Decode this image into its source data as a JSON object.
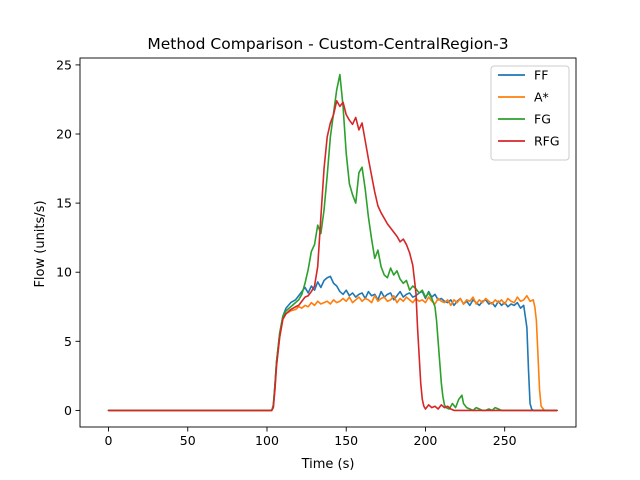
{
  "chart_data": {
    "type": "line",
    "title": "Method Comparison - Custom-CentralRegion-3",
    "xlabel": "Time (s)",
    "ylabel": "Flow (units/s)",
    "xlim": [
      -18,
      295
    ],
    "ylim": [
      -1.2,
      25.5
    ],
    "xticks": [
      0,
      50,
      100,
      150,
      200,
      250
    ],
    "yticks": [
      0,
      5,
      10,
      15,
      20,
      25
    ],
    "grid": false,
    "legend_position": "top-right",
    "series": [
      {
        "name": "FF",
        "color": "#1f77b4",
        "x": [
          0,
          50,
          100,
          103,
          104,
          105,
          106,
          108,
          110,
          112,
          115,
          118,
          120,
          122,
          124,
          126,
          128,
          130,
          132,
          134,
          136,
          138,
          140,
          142,
          144,
          146,
          148,
          150,
          152,
          154,
          156,
          158,
          160,
          162,
          164,
          166,
          168,
          170,
          172,
          174,
          176,
          178,
          180,
          182,
          184,
          186,
          188,
          190,
          192,
          194,
          196,
          198,
          200,
          202,
          204,
          206,
          208,
          210,
          212,
          214,
          216,
          218,
          220,
          222,
          224,
          226,
          228,
          230,
          232,
          234,
          236,
          238,
          240,
          242,
          244,
          246,
          248,
          250,
          252,
          254,
          256,
          258,
          260,
          262,
          264,
          265,
          266,
          267,
          268,
          270,
          275,
          283
        ],
        "y": [
          0,
          0,
          0,
          0,
          0.3,
          1.8,
          3.5,
          5.5,
          6.8,
          7.4,
          7.8,
          8.0,
          8.3,
          8.6,
          8.9,
          8.5,
          9.0,
          8.7,
          9.3,
          8.9,
          9.4,
          9.6,
          9.7,
          9.2,
          9.0,
          8.6,
          8.4,
          8.7,
          8.3,
          8.5,
          8.2,
          8.4,
          8.5,
          8.1,
          8.6,
          8.3,
          8.4,
          8.0,
          8.6,
          8.2,
          8.4,
          8.5,
          8.0,
          8.3,
          8.6,
          8.2,
          8.4,
          8.5,
          8.2,
          8.3,
          8.5,
          8.6,
          8.1,
          8.6,
          8.2,
          8.4,
          8.0,
          8.1,
          7.9,
          7.8,
          8.0,
          7.6,
          7.9,
          8.1,
          7.7,
          7.9,
          7.6,
          8.0,
          7.8,
          7.6,
          7.9,
          8.0,
          7.7,
          7.8,
          7.5,
          7.9,
          7.6,
          7.8,
          7.5,
          7.7,
          7.6,
          7.8,
          7.4,
          7.6,
          6.0,
          3.0,
          0.5,
          0.1,
          0,
          0,
          0,
          0
        ]
      },
      {
        "name": "A*",
        "color": "#ff7f0e",
        "x": [
          0,
          50,
          100,
          103,
          104,
          105,
          106,
          108,
          110,
          112,
          115,
          118,
          120,
          122,
          124,
          126,
          128,
          130,
          132,
          134,
          136,
          138,
          140,
          142,
          144,
          146,
          148,
          150,
          152,
          154,
          156,
          158,
          160,
          162,
          164,
          166,
          168,
          170,
          172,
          174,
          176,
          178,
          180,
          182,
          184,
          186,
          188,
          190,
          192,
          194,
          196,
          198,
          200,
          202,
          204,
          206,
          208,
          210,
          212,
          214,
          216,
          218,
          220,
          222,
          224,
          226,
          228,
          230,
          232,
          234,
          236,
          238,
          240,
          242,
          244,
          246,
          248,
          250,
          252,
          254,
          256,
          258,
          260,
          262,
          264,
          266,
          268,
          269,
          270,
          271,
          272,
          273,
          275,
          283
        ],
        "y": [
          0,
          0,
          0,
          0,
          0.3,
          1.5,
          3.3,
          5.3,
          6.6,
          7.0,
          7.2,
          7.3,
          7.5,
          7.4,
          7.6,
          7.5,
          7.8,
          7.6,
          7.9,
          7.7,
          7.8,
          7.9,
          7.7,
          8.0,
          7.8,
          7.9,
          8.1,
          7.9,
          8.2,
          7.8,
          8.0,
          8.2,
          7.9,
          8.1,
          8.0,
          7.8,
          8.3,
          7.9,
          8.1,
          8.2,
          7.9,
          8.0,
          8.3,
          7.8,
          8.1,
          7.9,
          8.2,
          8.0,
          7.8,
          8.1,
          7.9,
          8.0,
          7.8,
          8.2,
          7.9,
          7.7,
          8.1,
          7.9,
          7.8,
          8.0,
          7.6,
          8.0,
          7.8,
          8.1,
          7.7,
          8.0,
          7.9,
          8.2,
          7.7,
          8.0,
          7.8,
          8.1,
          7.9,
          7.7,
          8.0,
          7.8,
          8.0,
          7.7,
          8.1,
          7.9,
          7.8,
          8.2,
          7.9,
          8.0,
          8.3,
          7.9,
          8.0,
          7.5,
          6.5,
          4.0,
          1.5,
          0.3,
          0,
          0
        ]
      },
      {
        "name": "FG",
        "color": "#2ca02c",
        "x": [
          0,
          50,
          100,
          103,
          104,
          105,
          106,
          108,
          110,
          112,
          115,
          118,
          120,
          122,
          124,
          126,
          128,
          130,
          132,
          134,
          136,
          138,
          140,
          142,
          144,
          146,
          148,
          150,
          152,
          154,
          156,
          158,
          160,
          162,
          164,
          166,
          168,
          170,
          172,
          174,
          176,
          178,
          180,
          182,
          184,
          186,
          188,
          190,
          192,
          194,
          196,
          198,
          200,
          202,
          204,
          206,
          207,
          208,
          209,
          210,
          211,
          212,
          213,
          215,
          217,
          219,
          221,
          223,
          224,
          226,
          228,
          230,
          232,
          234,
          236,
          238,
          240,
          242,
          244,
          246,
          248,
          250,
          260,
          283
        ],
        "y": [
          0,
          0,
          0,
          0,
          0.4,
          1.8,
          3.5,
          5.6,
          6.8,
          7.2,
          7.5,
          7.8,
          8.0,
          8.4,
          9.2,
          10.2,
          11.5,
          12.0,
          13.4,
          12.8,
          14.5,
          17.0,
          19.8,
          21.5,
          23.2,
          24.3,
          22.0,
          18.6,
          16.4,
          15.6,
          15.0,
          17.2,
          17.6,
          16.0,
          14.0,
          12.4,
          11.0,
          11.6,
          10.4,
          9.8,
          9.6,
          10.3,
          9.8,
          10.1,
          9.5,
          9.2,
          9.4,
          8.7,
          9.0,
          8.8,
          8.5,
          8.7,
          8.2,
          8.5,
          8.1,
          7.5,
          6.5,
          5.0,
          3.5,
          2.0,
          1.0,
          0.4,
          0.2,
          0.1,
          0.5,
          0.2,
          0.8,
          1.1,
          0.5,
          0.2,
          0.1,
          0,
          0.2,
          0.1,
          0,
          0,
          0.1,
          0,
          0.2,
          0.1,
          0,
          0,
          0,
          0
        ]
      },
      {
        "name": "RFG",
        "color": "#d62728",
        "x": [
          0,
          50,
          100,
          103,
          104,
          105,
          106,
          108,
          110,
          112,
          115,
          118,
          120,
          122,
          124,
          126,
          128,
          130,
          132,
          134,
          136,
          138,
          140,
          142,
          144,
          146,
          148,
          150,
          152,
          154,
          156,
          158,
          160,
          162,
          164,
          166,
          168,
          170,
          172,
          174,
          176,
          178,
          180,
          182,
          184,
          186,
          188,
          190,
          192,
          194,
          195,
          196,
          197,
          198,
          199,
          200,
          202,
          204,
          206,
          208,
          210,
          212,
          214,
          216,
          218,
          220,
          225,
          230,
          283
        ],
        "y": [
          0,
          0,
          0,
          0,
          0.2,
          1.5,
          3.2,
          5.3,
          6.6,
          7.0,
          7.3,
          7.5,
          7.6,
          7.9,
          8.2,
          8.3,
          8.6,
          9.0,
          10.4,
          14.0,
          17.5,
          19.8,
          20.8,
          21.4,
          22.4,
          22.0,
          22.3,
          21.4,
          21.0,
          20.7,
          21.2,
          20.3,
          20.8,
          19.5,
          18.2,
          17.0,
          15.8,
          14.8,
          14.3,
          13.9,
          13.5,
          13.2,
          12.9,
          12.6,
          12.2,
          12.4,
          12.0,
          11.4,
          10.5,
          8.5,
          6.0,
          4.0,
          2.0,
          0.8,
          0.3,
          0.1,
          0.4,
          0.2,
          0.3,
          0.1,
          0.4,
          0.2,
          0.3,
          0.1,
          0,
          0,
          0,
          0,
          0
        ]
      }
    ]
  }
}
